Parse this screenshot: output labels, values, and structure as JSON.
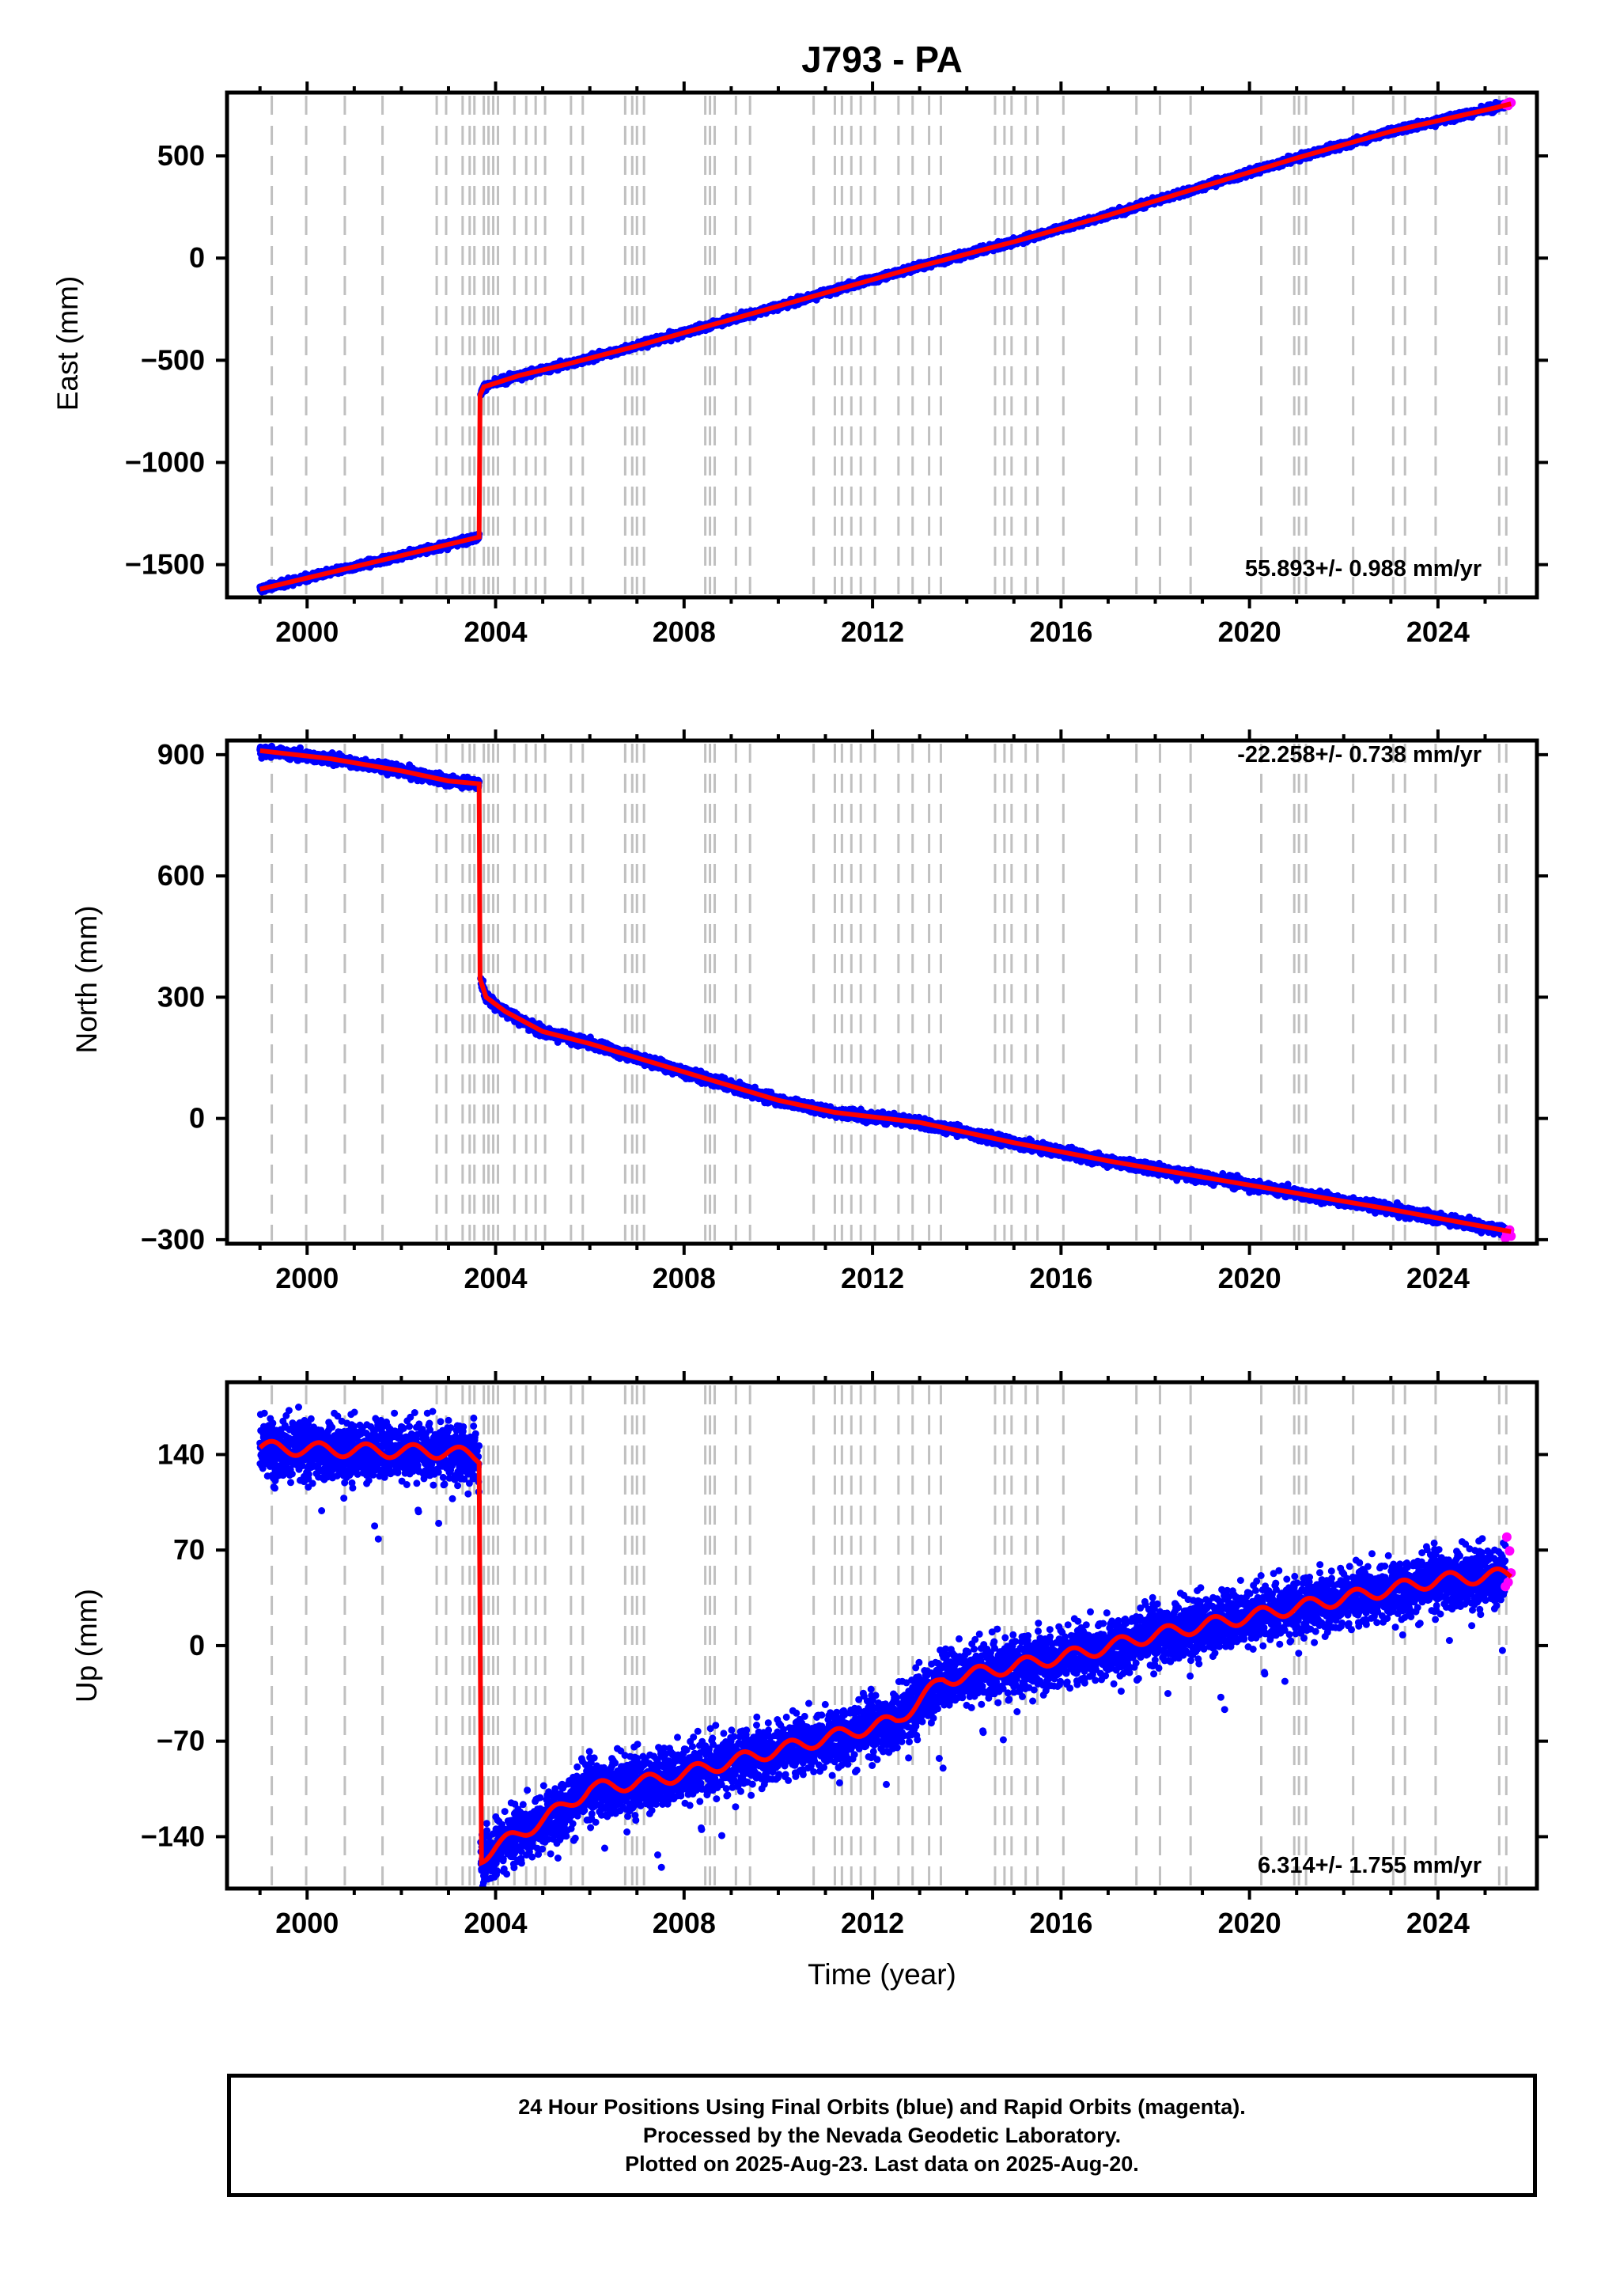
{
  "title": "J793 - PA",
  "xlabel": "Time (year)",
  "x_ticks": [
    "2000",
    "2004",
    "2008",
    "2012",
    "2016",
    "2020",
    "2024"
  ],
  "colors": {
    "final_orbits": "#0000ff",
    "rapid_orbits": "#ff00ff",
    "model": "#ff0000",
    "event_lines": "#c0c0c0"
  },
  "caption": {
    "line1": "24 Hour Positions Using Final Orbits (blue) and Rapid Orbits (magenta).",
    "line2": "Processed by the Nevada Geodetic Laboratory.",
    "line3": "Plotted on 2025-Aug-23. Last data on 2025-Aug-20."
  },
  "chart_data": [
    {
      "type": "scatter",
      "name": "east",
      "ylabel": "East (mm)",
      "xlim": [
        1998.3,
        2026.1
      ],
      "ylim": [
        -1660,
        810
      ],
      "y_ticks": [
        "500",
        "0",
        "−500",
        "−1000",
        "−1500"
      ],
      "y_tick_values": [
        500,
        0,
        -500,
        -1000,
        -1500
      ],
      "rate": "55.893+/- 0.988 mm/yr",
      "rate_placement": "bottom-right",
      "x": [
        1999.0,
        2003.65,
        2003.67,
        2003.75,
        2004.5,
        2005.5,
        2007.0,
        2009.0,
        2011.0,
        2013.0,
        2015.0,
        2017.0,
        2019.0,
        2021.0,
        2023.0,
        2025.2,
        2025.55
      ],
      "y": [
        -1620,
        -1365,
        -670,
        -630,
        -575,
        -520,
        -430,
        -300,
        -170,
        -40,
        80,
        210,
        350,
        490,
        620,
        735,
        755
      ],
      "noise": 8
    },
    {
      "type": "scatter",
      "name": "north",
      "ylabel": "North (mm)",
      "xlim": [
        1998.3,
        2026.1
      ],
      "ylim": [
        -310,
        935
      ],
      "y_ticks": [
        "900",
        "600",
        "300",
        "0",
        "−300"
      ],
      "y_tick_values": [
        900,
        600,
        300,
        0,
        -300
      ],
      "rate": "-22.258+/- 0.738 mm/yr",
      "rate_placement": "top-right",
      "x": [
        1999.0,
        2000.5,
        2002.0,
        2003.0,
        2003.65,
        2003.67,
        2003.8,
        2004.2,
        2005.0,
        2006.0,
        2008.0,
        2010.0,
        2011.2,
        2013.0,
        2015.0,
        2017.0,
        2019.0,
        2021.0,
        2023.0,
        2025.55
      ],
      "y": [
        910,
        890,
        860,
        835,
        828,
        345,
        300,
        265,
        215,
        185,
        115,
        45,
        15,
        -10,
        -60,
        -105,
        -145,
        -185,
        -225,
        -280
      ],
      "noise": 6
    },
    {
      "type": "scatter",
      "name": "up",
      "ylabel": "Up (mm)",
      "xlim": [
        1998.3,
        2026.1
      ],
      "ylim": [
        -178,
        193
      ],
      "y_ticks": [
        "140",
        "70",
        "0",
        "−70",
        "−140"
      ],
      "y_tick_values": [
        140,
        70,
        0,
        -70,
        -140
      ],
      "rate": "6.314+/- 1.755 mm/yr",
      "rate_placement": "bottom-right",
      "x": [
        1999.0,
        2001.0,
        2003.0,
        2003.65,
        2003.67,
        2004.0,
        2005.0,
        2006.0,
        2007.5,
        2009.0,
        2011.0,
        2012.5,
        2013.5,
        2015.0,
        2016.5,
        2018.0,
        2019.5,
        2021.0,
        2022.5,
        2024.0,
        2025.55
      ],
      "y": [
        145,
        143,
        142,
        138,
        -155,
        -148,
        -128,
        -105,
        -98,
        -85,
        -68,
        -55,
        -25,
        -15,
        -5,
        8,
        18,
        28,
        38,
        48,
        52
      ],
      "noise": 11
    }
  ],
  "event_lines_years": [
    1999.25,
    1999.98,
    2000.8,
    2001.6,
    2002.75,
    2002.95,
    2003.3,
    2003.45,
    2003.55,
    2003.75,
    2003.85,
    2003.95,
    2004.05,
    2004.4,
    2004.65,
    2004.85,
    2005.05,
    2005.6,
    2005.85,
    2006.75,
    2006.9,
    2007.0,
    2007.15,
    2008.45,
    2008.55,
    2008.65,
    2009.1,
    2009.4,
    2010.75,
    2011.2,
    2011.35,
    2011.55,
    2011.75,
    2012.05,
    2012.55,
    2012.85,
    2013.2,
    2013.45,
    2014.6,
    2014.8,
    2014.95,
    2015.25,
    2015.5,
    2016.05,
    2017.6,
    2018.1,
    2018.75,
    2020.25,
    2020.95,
    2021.05,
    2021.2,
    2022.2,
    2023.05,
    2023.3,
    2023.95,
    2025.3,
    2025.45
  ]
}
